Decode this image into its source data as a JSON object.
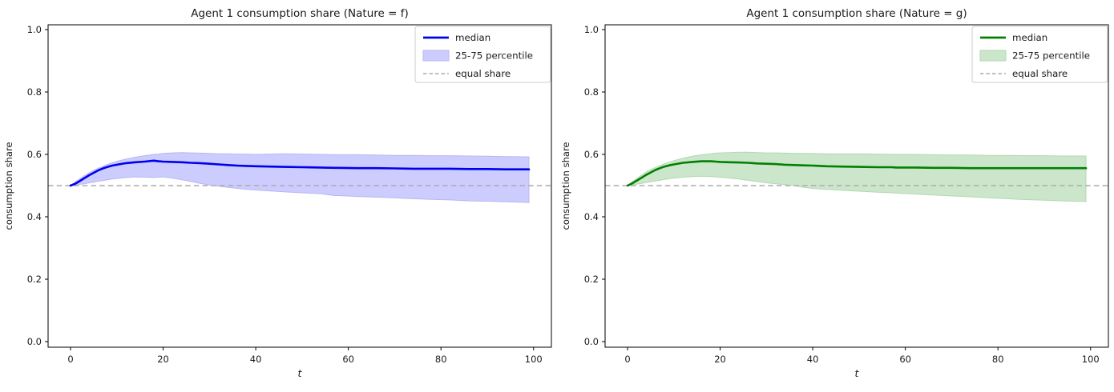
{
  "figure": {
    "background": "#ffffff",
    "xlabel": "t",
    "ylabel": "consumption share"
  },
  "chart_data": [
    {
      "type": "line",
      "title": "Agent 1 consumption share (Nature = f)",
      "xlabel": "t",
      "ylabel": "consumption share",
      "xticks": [
        0,
        20,
        40,
        60,
        80,
        100
      ],
      "yticks": [
        0.0,
        0.2,
        0.4,
        0.6,
        0.8,
        1.0
      ],
      "xlim": [
        -4.85,
        103.85
      ],
      "ylim": [
        0,
        1
      ],
      "grid": false,
      "legend_position": "upper right",
      "legend": [
        {
          "label": "median",
          "type": "line"
        },
        {
          "label": "25-75 percentile",
          "type": "patch"
        },
        {
          "label": "equal share",
          "type": "dashed"
        }
      ],
      "equal_share_value": 0.5,
      "colors": {
        "median": "#0000ee",
        "band_fill": "#ccccff",
        "band_edge": "#b7b7f2",
        "equal_share": "#ababab"
      },
      "x": [
        0,
        1,
        2,
        3,
        4,
        5,
        6,
        7,
        8,
        9,
        10,
        12,
        14,
        16,
        18,
        19,
        20,
        22,
        24,
        26,
        28,
        30,
        32,
        34,
        36,
        38,
        40,
        43,
        46,
        50,
        54,
        57,
        58,
        62,
        66,
        70,
        74,
        78,
        82,
        86,
        90,
        94,
        99
      ],
      "series": [
        {
          "name": "median",
          "values": [
            0.5,
            0.506,
            0.515,
            0.524,
            0.533,
            0.541,
            0.549,
            0.555,
            0.56,
            0.564,
            0.567,
            0.572,
            0.575,
            0.577,
            0.58,
            0.578,
            0.577,
            0.576,
            0.575,
            0.573,
            0.572,
            0.57,
            0.568,
            0.566,
            0.564,
            0.563,
            0.562,
            0.561,
            0.56,
            0.559,
            0.558,
            0.557,
            0.557,
            0.556,
            0.556,
            0.555,
            0.554,
            0.554,
            0.554,
            0.553,
            0.553,
            0.552,
            0.552
          ]
        },
        {
          "name": "p75",
          "values": [
            0.5,
            0.511,
            0.522,
            0.532,
            0.541,
            0.549,
            0.556,
            0.562,
            0.568,
            0.573,
            0.578,
            0.585,
            0.591,
            0.596,
            0.6,
            0.601,
            0.603,
            0.605,
            0.606,
            0.605,
            0.604,
            0.603,
            0.602,
            0.602,
            0.601,
            0.601,
            0.6,
            0.601,
            0.602,
            0.601,
            0.6,
            0.599,
            0.599,
            0.599,
            0.598,
            0.597,
            0.597,
            0.596,
            0.596,
            0.595,
            0.594,
            0.593,
            0.592
          ]
        },
        {
          "name": "p25",
          "values": [
            0.5,
            0.502,
            0.504,
            0.506,
            0.509,
            0.511,
            0.514,
            0.516,
            0.519,
            0.521,
            0.523,
            0.526,
            0.528,
            0.527,
            0.526,
            0.527,
            0.528,
            0.524,
            0.519,
            0.513,
            0.507,
            0.502,
            0.498,
            0.494,
            0.491,
            0.488,
            0.486,
            0.483,
            0.48,
            0.477,
            0.474,
            0.468,
            0.468,
            0.465,
            0.463,
            0.461,
            0.458,
            0.456,
            0.454,
            0.451,
            0.45,
            0.448,
            0.446
          ]
        }
      ]
    },
    {
      "type": "line",
      "title": "Agent 1 consumption share (Nature = g)",
      "xlabel": "t",
      "ylabel": "consumption share",
      "xticks": [
        0,
        20,
        40,
        60,
        80,
        100
      ],
      "yticks": [
        0.0,
        0.2,
        0.4,
        0.6,
        0.8,
        1.0
      ],
      "xlim": [
        -4.85,
        103.85
      ],
      "ylim": [
        0,
        1
      ],
      "grid": false,
      "legend_position": "upper right",
      "legend": [
        {
          "label": "median",
          "type": "line"
        },
        {
          "label": "25-75 percentile",
          "type": "patch"
        },
        {
          "label": "equal share",
          "type": "dashed"
        }
      ],
      "equal_share_value": 0.5,
      "colors": {
        "median": "#008000",
        "band_fill": "#cce6cc",
        "band_edge": "#b2d8b2",
        "equal_share": "#ababab"
      },
      "x": [
        0,
        1,
        2,
        3,
        4,
        5,
        6,
        7,
        8,
        9,
        10,
        12,
        14,
        16,
        18,
        19,
        20,
        22,
        24,
        26,
        28,
        30,
        32,
        34,
        36,
        38,
        40,
        43,
        46,
        50,
        54,
        57,
        58,
        62,
        66,
        70,
        74,
        78,
        82,
        86,
        90,
        94,
        99
      ],
      "series": [
        {
          "name": "median",
          "values": [
            0.5,
            0.507,
            0.516,
            0.525,
            0.534,
            0.542,
            0.55,
            0.556,
            0.561,
            0.565,
            0.568,
            0.573,
            0.576,
            0.578,
            0.578,
            0.577,
            0.576,
            0.575,
            0.574,
            0.573,
            0.571,
            0.57,
            0.569,
            0.567,
            0.566,
            0.565,
            0.564,
            0.562,
            0.561,
            0.56,
            0.559,
            0.559,
            0.558,
            0.558,
            0.557,
            0.557,
            0.556,
            0.556,
            0.556,
            0.556,
            0.556,
            0.556,
            0.556
          ]
        },
        {
          "name": "p75",
          "values": [
            0.5,
            0.512,
            0.523,
            0.533,
            0.543,
            0.551,
            0.558,
            0.564,
            0.57,
            0.575,
            0.58,
            0.588,
            0.594,
            0.599,
            0.602,
            0.604,
            0.605,
            0.606,
            0.607,
            0.607,
            0.606,
            0.605,
            0.605,
            0.604,
            0.603,
            0.603,
            0.603,
            0.602,
            0.602,
            0.602,
            0.601,
            0.6,
            0.6,
            0.6,
            0.599,
            0.598,
            0.598,
            0.597,
            0.597,
            0.596,
            0.596,
            0.595,
            0.595
          ]
        },
        {
          "name": "p25",
          "values": [
            0.5,
            0.502,
            0.505,
            0.507,
            0.51,
            0.512,
            0.515,
            0.517,
            0.52,
            0.522,
            0.524,
            0.527,
            0.529,
            0.53,
            0.529,
            0.528,
            0.527,
            0.524,
            0.521,
            0.517,
            0.513,
            0.509,
            0.506,
            0.503,
            0.5,
            0.494,
            0.491,
            0.488,
            0.485,
            0.482,
            0.479,
            0.477,
            0.476,
            0.473,
            0.47,
            0.467,
            0.464,
            0.461,
            0.458,
            0.455,
            0.453,
            0.451,
            0.449
          ]
        }
      ]
    }
  ]
}
